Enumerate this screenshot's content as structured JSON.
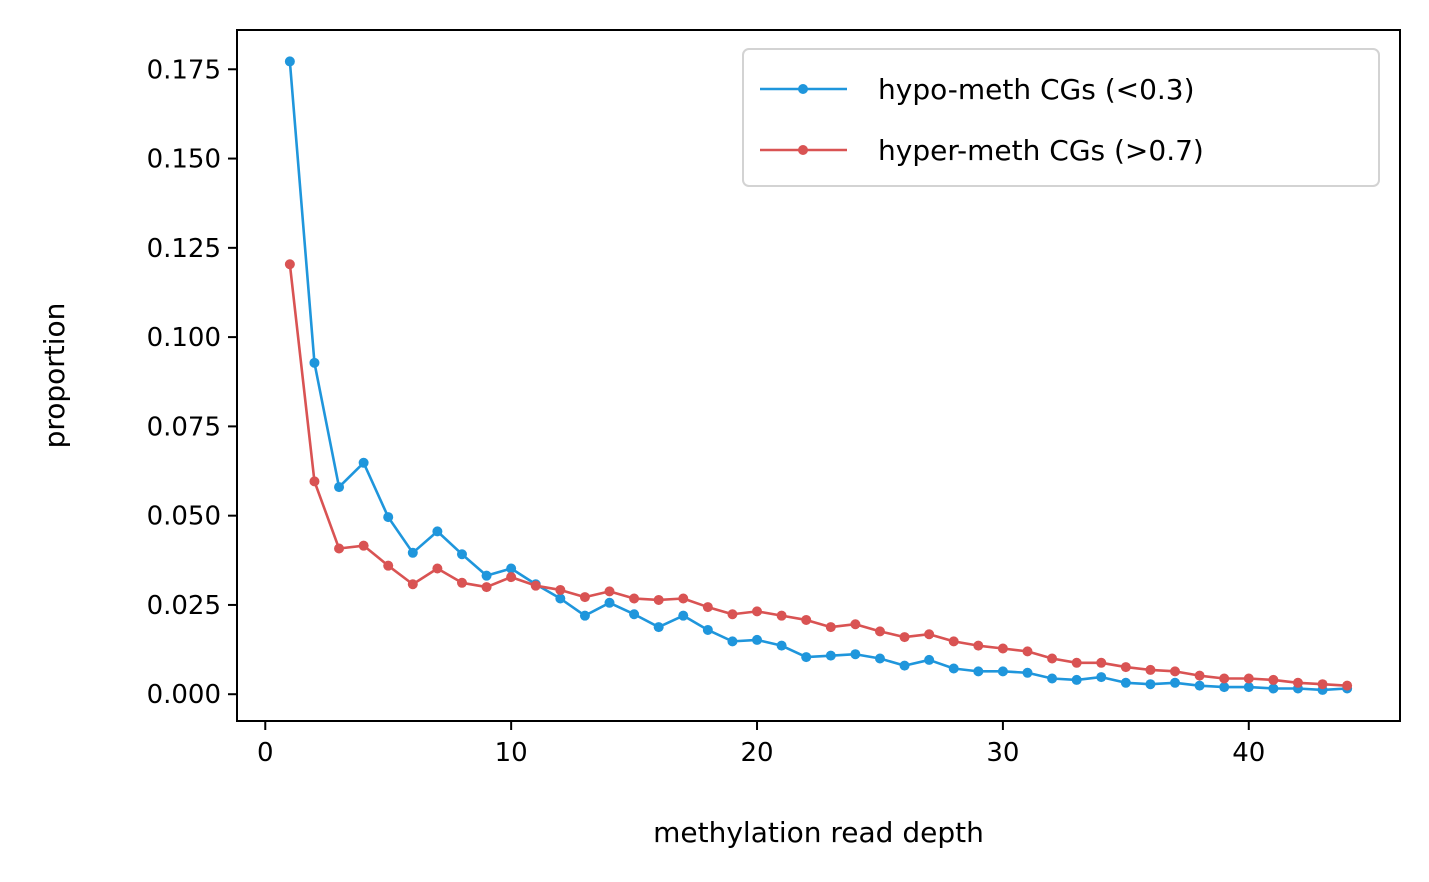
{
  "chart_data": {
    "type": "line",
    "xlabel": "methylation read depth",
    "ylabel": "proportion",
    "xlim": [
      -1.15,
      46.15
    ],
    "ylim": [
      -0.0075,
      0.186
    ],
    "xticks": [
      0,
      10,
      20,
      30,
      40
    ],
    "yticks": [
      0.0,
      0.025,
      0.05,
      0.075,
      0.1,
      0.125,
      0.15,
      0.175
    ],
    "ytick_labels": [
      "0.000",
      "0.025",
      "0.050",
      "0.075",
      "0.100",
      "0.125",
      "0.150",
      "0.175"
    ],
    "grid": false,
    "legend_position": "top-right",
    "x": [
      1,
      2,
      3,
      4,
      5,
      6,
      7,
      8,
      9,
      10,
      11,
      12,
      13,
      14,
      15,
      16,
      17,
      18,
      19,
      20,
      21,
      22,
      23,
      24,
      25,
      26,
      27,
      28,
      29,
      30,
      31,
      32,
      33,
      34,
      35,
      36,
      37,
      38,
      39,
      40,
      41,
      42,
      43,
      44
    ],
    "series": [
      {
        "name": "hypo-meth CGs (<0.3)",
        "color": "#1f96dc",
        "values": [
          0.1772,
          0.0928,
          0.058,
          0.0648,
          0.0496,
          0.0396,
          0.0456,
          0.0392,
          0.0332,
          0.0352,
          0.0308,
          0.0268,
          0.022,
          0.0256,
          0.0224,
          0.0188,
          0.022,
          0.018,
          0.0148,
          0.0152,
          0.0136,
          0.0104,
          0.0108,
          0.0112,
          0.01,
          0.008,
          0.0096,
          0.0072,
          0.0064,
          0.0064,
          0.006,
          0.0044,
          0.004,
          0.0048,
          0.0032,
          0.0028,
          0.0032,
          0.0024,
          0.002,
          0.002,
          0.0016,
          0.0016,
          0.0012,
          0.0016
        ]
      },
      {
        "name": "hyper-meth CGs (>0.7)",
        "color": "#d95353",
        "values": [
          0.1204,
          0.0596,
          0.0408,
          0.0416,
          0.036,
          0.0308,
          0.0352,
          0.0312,
          0.03,
          0.0328,
          0.0304,
          0.0292,
          0.0272,
          0.0288,
          0.0268,
          0.0264,
          0.0268,
          0.0244,
          0.0224,
          0.0232,
          0.022,
          0.0208,
          0.0188,
          0.0196,
          0.0176,
          0.016,
          0.0168,
          0.0148,
          0.0136,
          0.0128,
          0.012,
          0.01,
          0.0088,
          0.0088,
          0.0076,
          0.0068,
          0.0064,
          0.0052,
          0.0044,
          0.0044,
          0.004,
          0.0032,
          0.0028,
          0.0024
        ]
      }
    ]
  }
}
